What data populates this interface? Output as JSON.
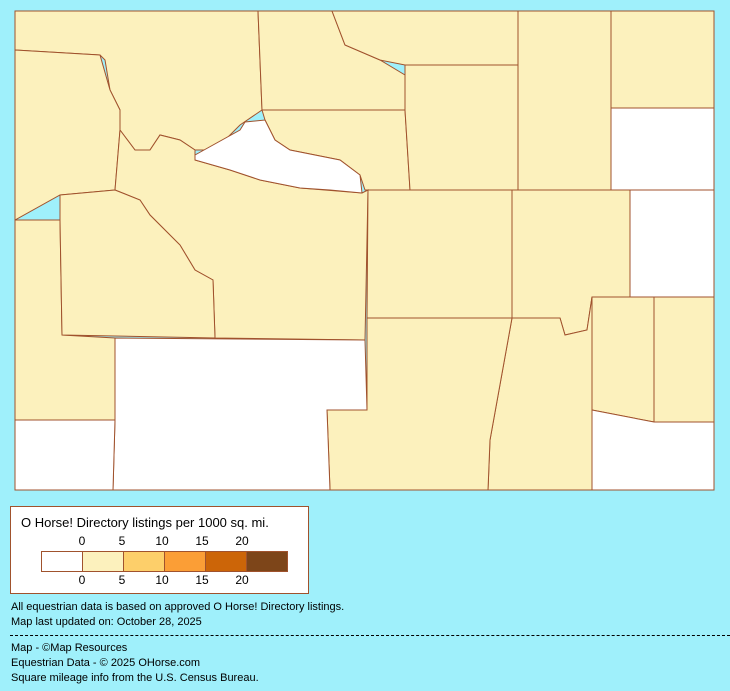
{
  "colors": {
    "background": "#9ff0fb",
    "border": "#a0522d",
    "bins": [
      "#ffffff",
      "#fcf1bd",
      "#fdcf6a",
      "#fb9e36",
      "#cc6508",
      "#7d4519"
    ]
  },
  "legend": {
    "title": "O Horse! Directory listings per 1000 sq. mi.",
    "top_labels": [
      "0",
      "5",
      "10",
      "15",
      "20"
    ],
    "bottom_labels": [
      "0",
      "5",
      "10",
      "15",
      "20"
    ]
  },
  "notes": {
    "line1": "All equestrian data is based on approved O Horse! Directory listings.",
    "line2": "Map last updated on: October 28, 2025"
  },
  "credits": {
    "line1": "Map - ©Map Resources",
    "line2": "Equestrian Data - © 2025 OHorse.com",
    "line3": "Square mileage info from the U.S. Census Bureau."
  },
  "regions": [
    {
      "bin": 1
    },
    {
      "bin": 1
    },
    {
      "bin": 0
    },
    {
      "bin": 1
    },
    {
      "bin": 1
    },
    {
      "bin": 1
    },
    {
      "bin": 1
    },
    {
      "bin": 1
    },
    {
      "bin": 1
    },
    {
      "bin": 0
    },
    {
      "bin": 1
    },
    {
      "bin": 1
    },
    {
      "bin": 1
    },
    {
      "bin": 0
    },
    {
      "bin": 1
    },
    {
      "bin": 1
    },
    {
      "bin": 0
    },
    {
      "bin": 1
    },
    {
      "bin": 1
    },
    {
      "bin": 0
    },
    {
      "bin": 0
    },
    {
      "bin": 1
    },
    {
      "bin": 1
    }
  ]
}
